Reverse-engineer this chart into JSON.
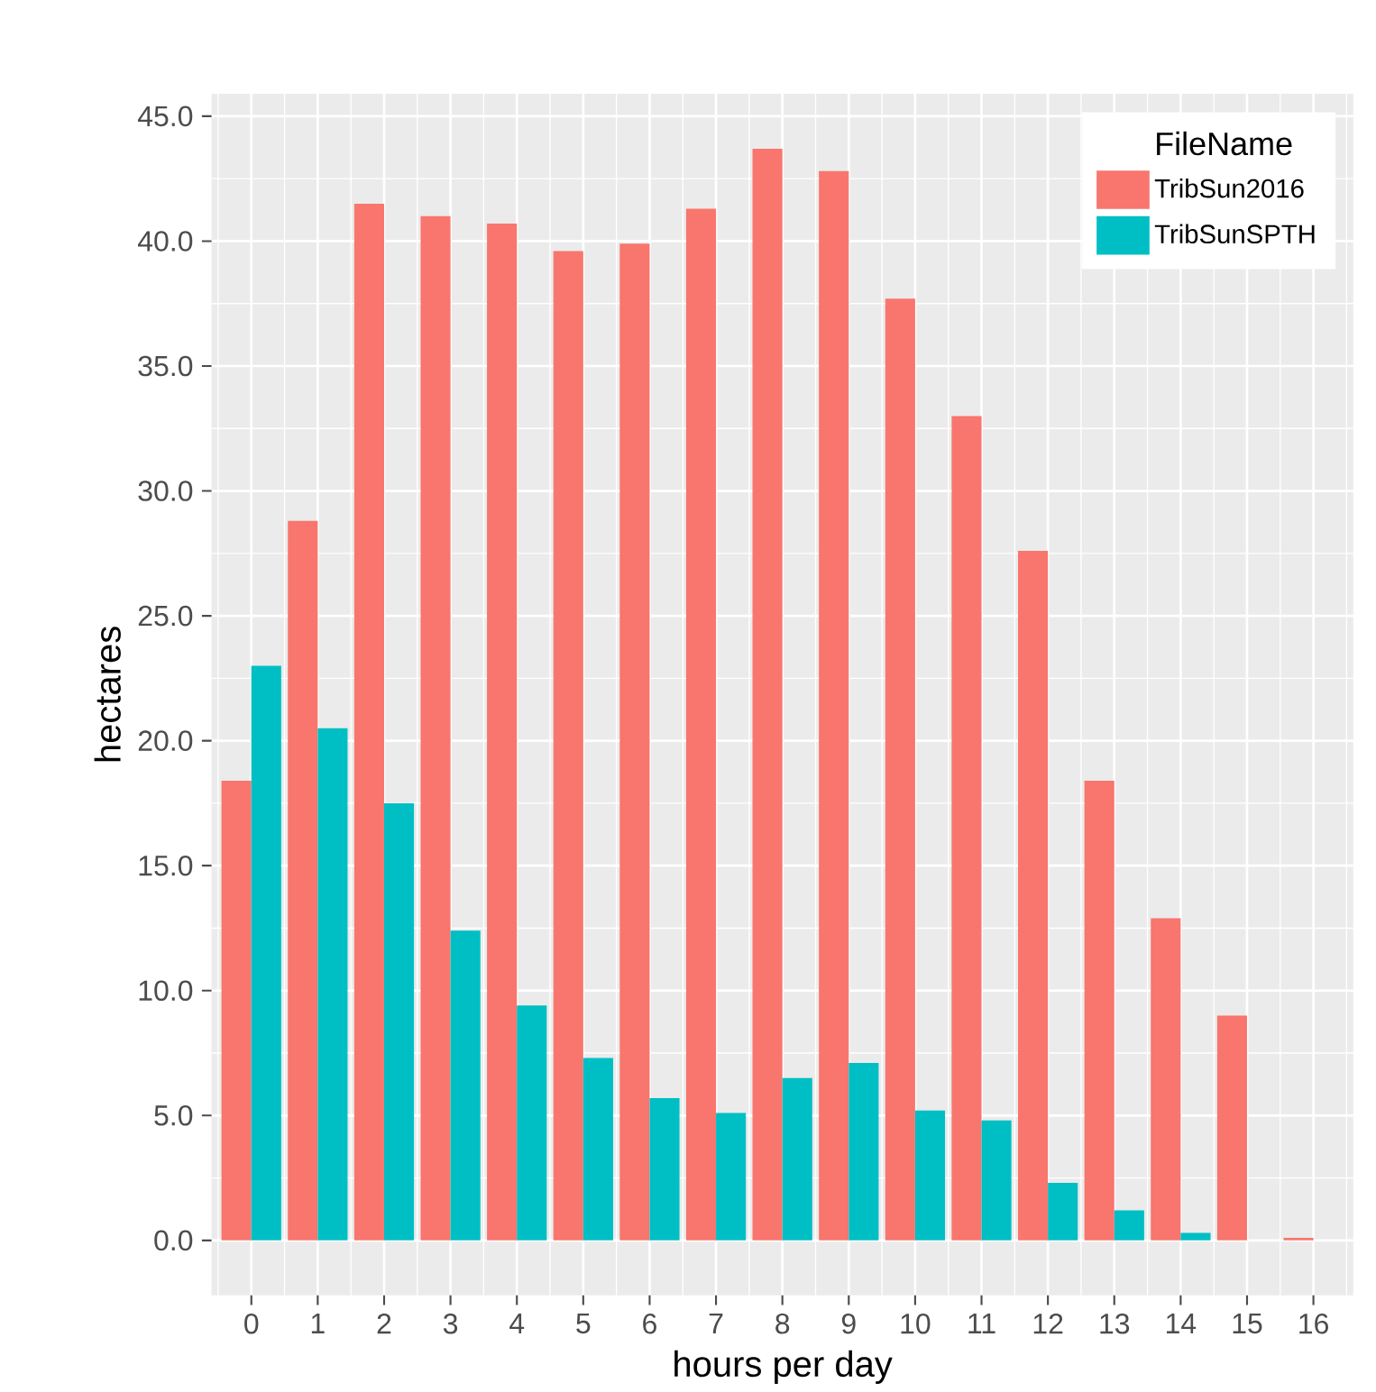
{
  "chart_data": {
    "type": "bar",
    "xlabel": "hours per day",
    "ylabel": "hectares",
    "legend_title": "FileName",
    "categories": [
      "0",
      "1",
      "2",
      "3",
      "4",
      "5",
      "6",
      "7",
      "8",
      "9",
      "10",
      "11",
      "12",
      "13",
      "14",
      "15",
      "16"
    ],
    "series": [
      {
        "name": "TribSun2016",
        "color": "#f8766d",
        "values": [
          18.4,
          28.8,
          41.5,
          41.0,
          40.7,
          39.6,
          39.9,
          41.3,
          43.7,
          42.8,
          37.7,
          33.0,
          27.6,
          18.4,
          12.9,
          9.0,
          0.1
        ]
      },
      {
        "name": "TribSunSPTH",
        "color": "#00bfc4",
        "values": [
          23.0,
          20.5,
          17.5,
          12.4,
          9.4,
          7.3,
          5.7,
          5.1,
          6.5,
          7.1,
          5.2,
          4.8,
          2.3,
          1.2,
          0.3,
          null,
          null
        ]
      }
    ],
    "ylim": [
      -2.2,
      45.9
    ],
    "yticks": [
      {
        "value": 0,
        "label": "0.0"
      },
      {
        "value": 5,
        "label": "5.0"
      },
      {
        "value": 10,
        "label": "10.0"
      },
      {
        "value": 15,
        "label": "15.0"
      },
      {
        "value": 20,
        "label": "20.0"
      },
      {
        "value": 25,
        "label": "25.0"
      },
      {
        "value": 30,
        "label": "30.0"
      },
      {
        "value": 35,
        "label": "35.0"
      },
      {
        "value": 40,
        "label": "40.0"
      },
      {
        "value": 45,
        "label": "45.0"
      }
    ],
    "grid": true,
    "legend": "top right"
  }
}
